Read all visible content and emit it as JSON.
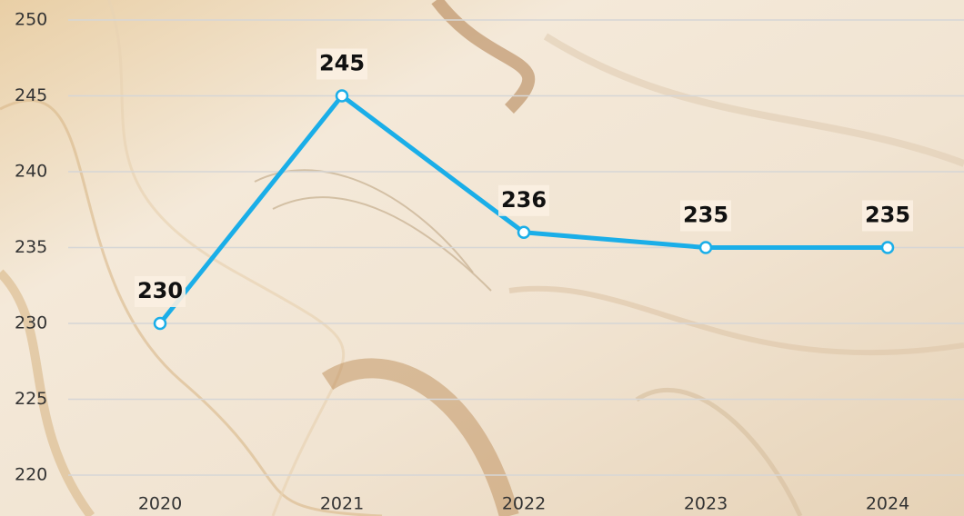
{
  "chart_data": {
    "type": "line",
    "categories": [
      "2020",
      "2021",
      "2022",
      "2023",
      "2024"
    ],
    "values": [
      230,
      245,
      236,
      235,
      235
    ],
    "color": "#1aaee8",
    "ylim": [
      220,
      250
    ],
    "yticks": [
      220,
      225,
      230,
      235,
      240,
      245,
      250
    ],
    "grid": true
  }
}
